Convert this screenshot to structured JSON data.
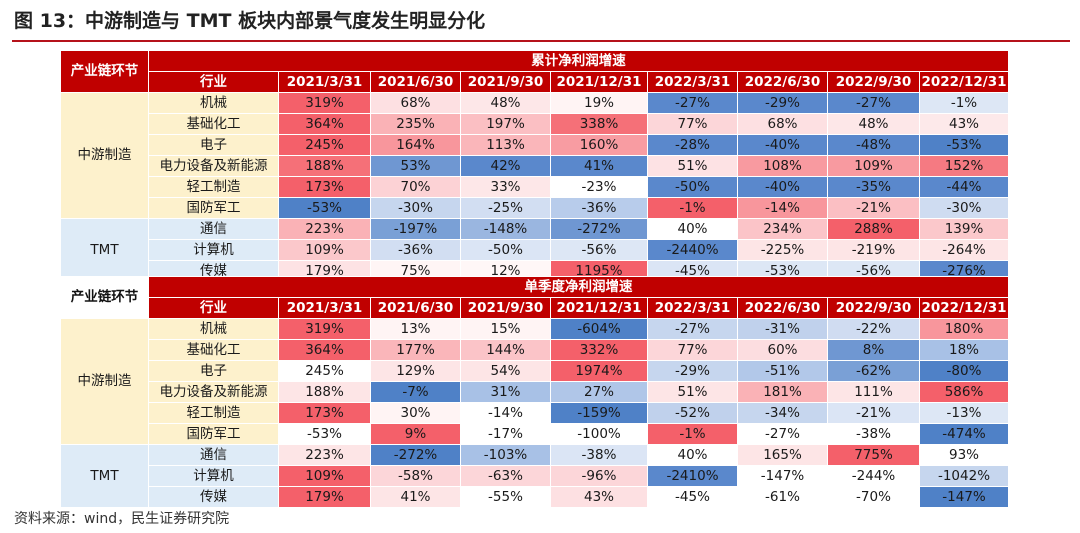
{
  "title": "图 13：中游制造与 TMT 板块内部景气度发生明显分化",
  "source": "资料来源：wind，民生证券研究院",
  "colors": {
    "header": "#c00000",
    "group_mid": "#fdf1cc",
    "group_tmt": "#deebf7",
    "positive": "#f4606a",
    "negative": "#4f81c7"
  },
  "chart_data": {
    "type": "table",
    "chain_label": "产业链环节",
    "industry_label": "行业",
    "columns": [
      "2021/3/31",
      "2021/6/30",
      "2021/9/30",
      "2021/12/31",
      "2022/3/31",
      "2022/6/30",
      "2022/9/30",
      "2022/12/31"
    ],
    "tables": [
      {
        "title": "累计净利润增速",
        "groups": [
          {
            "name": "中游制造",
            "rows": [
              {
                "industry": "机械",
                "values": [
                  "319%",
                  "68%",
                  "48%",
                  "19%",
                  "-27%",
                  "-29%",
                  "-27%",
                  "-1%"
                ]
              },
              {
                "industry": "基础化工",
                "values": [
                  "364%",
                  "235%",
                  "197%",
                  "338%",
                  "77%",
                  "68%",
                  "48%",
                  "43%"
                ]
              },
              {
                "industry": "电子",
                "values": [
                  "245%",
                  "164%",
                  "113%",
                  "160%",
                  "-28%",
                  "-40%",
                  "-48%",
                  "-53%"
                ]
              },
              {
                "industry": "电力设备及新能源",
                "values": [
                  "188%",
                  "53%",
                  "42%",
                  "41%",
                  "51%",
                  "108%",
                  "109%",
                  "152%"
                ]
              },
              {
                "industry": "轻工制造",
                "values": [
                  "173%",
                  "70%",
                  "33%",
                  "-23%",
                  "-50%",
                  "-40%",
                  "-35%",
                  "-44%"
                ]
              },
              {
                "industry": "国防军工",
                "values": [
                  "-53%",
                  "-30%",
                  "-25%",
                  "-36%",
                  "-1%",
                  "-14%",
                  "-21%",
                  "-30%"
                ]
              }
            ]
          },
          {
            "name": "TMT",
            "rows": [
              {
                "industry": "通信",
                "values": [
                  "223%",
                  "-197%",
                  "-148%",
                  "-272%",
                  "40%",
                  "234%",
                  "288%",
                  "139%"
                ]
              },
              {
                "industry": "计算机",
                "values": [
                  "109%",
                  "-36%",
                  "-50%",
                  "-56%",
                  "-2440%",
                  "-225%",
                  "-219%",
                  "-264%"
                ]
              },
              {
                "industry": "传媒",
                "values": [
                  "179%",
                  "75%",
                  "12%",
                  "1195%",
                  "-45%",
                  "-53%",
                  "-56%",
                  "-276%"
                ]
              }
            ]
          }
        ]
      },
      {
        "title": "单季度净利润增速",
        "groups": [
          {
            "name": "中游制造",
            "rows": [
              {
                "industry": "机械",
                "values": [
                  "319%",
                  "13%",
                  "15%",
                  "-604%",
                  "-27%",
                  "-31%",
                  "-22%",
                  "180%"
                ]
              },
              {
                "industry": "基础化工",
                "values": [
                  "364%",
                  "177%",
                  "144%",
                  "332%",
                  "77%",
                  "60%",
                  "8%",
                  "18%"
                ]
              },
              {
                "industry": "电子",
                "values": [
                  "245%",
                  "129%",
                  "54%",
                  "1974%",
                  "-29%",
                  "-51%",
                  "-62%",
                  "-80%"
                ]
              },
              {
                "industry": "电力设备及新能源",
                "values": [
                  "188%",
                  "-7%",
                  "31%",
                  "27%",
                  "51%",
                  "181%",
                  "111%",
                  "586%"
                ]
              },
              {
                "industry": "轻工制造",
                "values": [
                  "173%",
                  "30%",
                  "-14%",
                  "-159%",
                  "-52%",
                  "-34%",
                  "-21%",
                  "-13%"
                ]
              },
              {
                "industry": "国防军工",
                "values": [
                  "-53%",
                  "9%",
                  "-17%",
                  "-100%",
                  "-1%",
                  "-27%",
                  "-38%",
                  "-474%"
                ]
              }
            ]
          },
          {
            "name": "TMT",
            "rows": [
              {
                "industry": "通信",
                "values": [
                  "223%",
                  "-272%",
                  "-103%",
                  "-38%",
                  "40%",
                  "165%",
                  "775%",
                  "93%"
                ]
              },
              {
                "industry": "计算机",
                "values": [
                  "109%",
                  "-58%",
                  "-63%",
                  "-96%",
                  "-2410%",
                  "-147%",
                  "-244%",
                  "-1042%"
                ]
              },
              {
                "industry": "传媒",
                "values": [
                  "179%",
                  "41%",
                  "-55%",
                  "43%",
                  "-45%",
                  "-61%",
                  "-70%",
                  "-147%"
                ]
              }
            ]
          }
        ]
      }
    ],
    "cell_colors": [
      [
        [
          "#f4606a",
          "#fde0e2",
          "#fde7e8",
          "#fff4f4",
          "#5a88cc",
          "#5a88cc",
          "#5a88cc",
          "#dde7f5"
        ],
        [
          "#f4606a",
          "#fab2b6",
          "#fbbfc3",
          "#f57078",
          "#fcd6d9",
          "#fde0e2",
          "#fde7e8",
          "#fde9ea"
        ],
        [
          "#f4606a",
          "#f8969c",
          "#fab6ba",
          "#f89ca2",
          "#5a88cc",
          "#5a88cc",
          "#5a88cc",
          "#4f81c7"
        ],
        [
          "#f57078",
          "#6f97d2",
          "#5a88cc",
          "#5a88cc",
          "#fde2e4",
          "#f89aa0",
          "#f89aa0",
          "#f57a82"
        ],
        [
          "#f4606a",
          "#fcd2d5",
          "#fde7e8",
          "#ffffff",
          "#5a88cc",
          "#5a88cc",
          "#5a88cc",
          "#5a88cc"
        ],
        [
          "#4f81c7",
          "#c6d6ee",
          "#d2def2",
          "#b8cceb",
          "#f4606a",
          "#f8969c",
          "#fbbfc3",
          "#cfdcf1"
        ]
      ],
      [
        [
          "#fab2b6",
          "#7aa0d6",
          "#9ab6e0",
          "#6f97d2",
          "#ffffff",
          "#fbc4c8",
          "#f4606a",
          "#fbc8cb"
        ],
        [
          "#fbc8cb",
          "#d2def2",
          "#dbe5f5",
          "#dde7f5",
          "#5a88cc",
          "#fde5e6",
          "#fde5e6",
          "#fde5e6"
        ],
        [
          "#fde2e4",
          "#fff5f5",
          "#fff7f7",
          "#f4606a",
          "#dbe5f5",
          "#dde7f5",
          "#dde7f5",
          "#5a88cc"
        ]
      ],
      [
        [
          "#f4606a",
          "#fff4f4",
          "#fff4f4",
          "#4f81c7",
          "#c6d6ee",
          "#c0d1ec",
          "#d0dcf1",
          "#f8969c"
        ],
        [
          "#f4606a",
          "#fab6ba",
          "#fbc4c8",
          "#f4606a",
          "#fcd6d9",
          "#fcdde0",
          "#6f97d2",
          "#a8c1e6"
        ],
        [
          "#ffffff",
          "#fde5e6",
          "#fde5e6",
          "#f4606a",
          "#c6d6ee",
          "#b2c8e9",
          "#7aa0d6",
          "#4f81c7"
        ],
        [
          "#fde5e6",
          "#4f81c7",
          "#a8c1e6",
          "#b0c6e8",
          "#fde5e6",
          "#fab2b6",
          "#fde5e6",
          "#f4606a"
        ],
        [
          "#f4606a",
          "#fff4f4",
          "#ffffff",
          "#4f81c7",
          "#c0d1ec",
          "#c6d6ee",
          "#dbe5f5",
          "#dde7f5"
        ],
        [
          "#ffffff",
          "#f4606a",
          "#ffffff",
          "#ffffff",
          "#f4606a",
          "#ffffff",
          "#ffffff",
          "#4f81c7"
        ]
      ],
      [
        [
          "#fde5e6",
          "#4f81c7",
          "#a8c1e6",
          "#dbe5f5",
          "#ffffff",
          "#fde5e6",
          "#f4606a",
          "#ffffff"
        ],
        [
          "#f4606a",
          "#fcd6d9",
          "#fcd6d9",
          "#fcd6d9",
          "#5a88cc",
          "#ffffff",
          "#ffffff",
          "#c6d6ee"
        ],
        [
          "#f4606a",
          "#fde5e6",
          "#ffffff",
          "#fde0e2",
          "#ffffff",
          "#ffffff",
          "#ffffff",
          "#4f81c7"
        ]
      ]
    ]
  }
}
